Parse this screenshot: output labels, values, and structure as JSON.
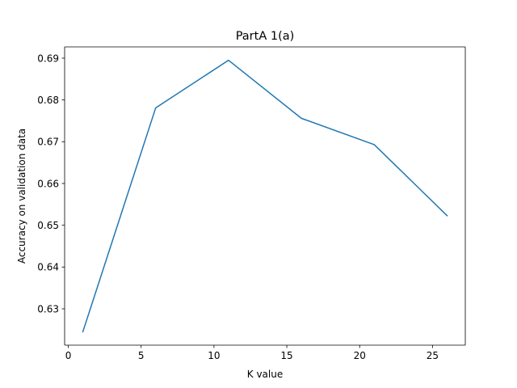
{
  "chart_data": {
    "type": "line",
    "title": "PartA 1(a)",
    "xlabel": "K value",
    "ylabel": "Accuracy on validation data",
    "xlim": [
      -0.25,
      27.25
    ],
    "ylim": [
      0.6213,
      0.6927
    ],
    "xticks": [
      0,
      5,
      10,
      15,
      20,
      25
    ],
    "xtick_labels": [
      "0",
      "5",
      "10",
      "15",
      "20",
      "25"
    ],
    "yticks": [
      0.63,
      0.64,
      0.65,
      0.66,
      0.67,
      0.68,
      0.69
    ],
    "ytick_labels": [
      "0.63",
      "0.64",
      "0.65",
      "0.66",
      "0.67",
      "0.68",
      "0.69"
    ],
    "grid": false,
    "series": [
      {
        "color": "#1f77b4",
        "x": [
          1,
          6,
          11,
          16,
          21,
          26
        ],
        "y": [
          0.6245,
          0.6781,
          0.6895,
          0.6756,
          0.6693,
          0.6523
        ]
      }
    ]
  }
}
